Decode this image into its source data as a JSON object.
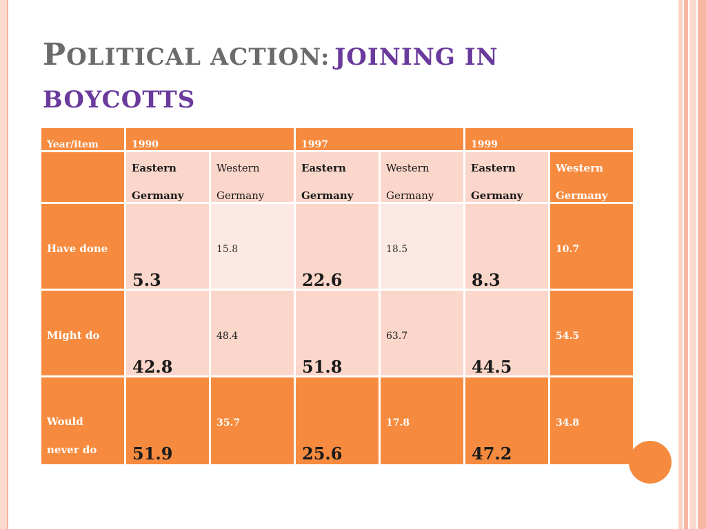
{
  "slide": {
    "title_p": "P",
    "title_rest": "OLITICAL ACTION:",
    "title_highlight_1": "JOINING IN",
    "title_highlight_2": "BOYCOTTS"
  },
  "table": {
    "corner_label": "Year/item",
    "years": [
      "1990",
      "1997",
      "1999"
    ],
    "regions": [
      {
        "line1": "Eastern",
        "line2": "Germany"
      },
      {
        "line1": "Western",
        "line2": "Germany"
      }
    ],
    "rows": [
      {
        "label": "Have done",
        "values": [
          "5.3",
          "15.8",
          "22.6",
          "18.5",
          "8.3",
          "10.7"
        ]
      },
      {
        "label": "Might do",
        "values": [
          "42.8",
          "48.4",
          "51.8",
          "63.7",
          "44.5",
          "54.5"
        ]
      },
      {
        "label_line1": "Would",
        "label_line2": "never do",
        "values": [
          "51.9",
          "35.7",
          "25.6",
          "17.8",
          "47.2",
          "34.8"
        ]
      }
    ]
  },
  "colors": {
    "accent_orange": "#f68b3f",
    "light_peach": "#fbd6ca",
    "pale_peach": "#fde9e4",
    "title_gray": "#6b6b6b",
    "title_purple": "#6a3a9c"
  }
}
